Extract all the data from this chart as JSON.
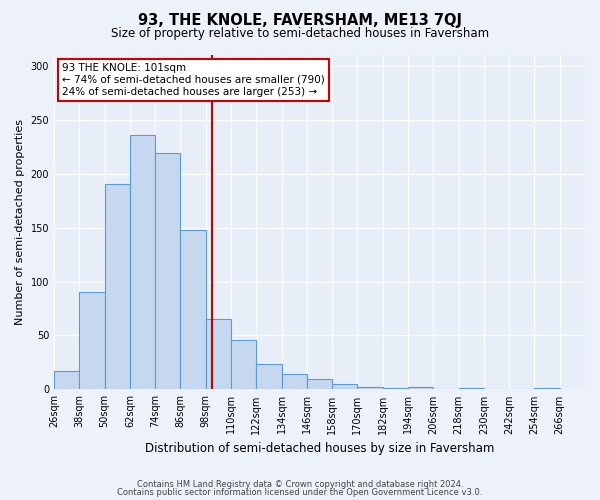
{
  "title": "93, THE KNOLE, FAVERSHAM, ME13 7QJ",
  "subtitle": "Size of property relative to semi-detached houses in Faversham",
  "xlabel": "Distribution of semi-detached houses by size in Faversham",
  "ylabel": "Number of semi-detached properties",
  "bar_color": "#c5d8f0",
  "bar_edge_color": "#5b9bd5",
  "background_color": "#e8eef8",
  "grid_color": "#ffffff",
  "marker_value": 101,
  "marker_color": "#cc0000",
  "annotation_text_line1": "93 THE KNOLE: 101sqm",
  "annotation_text_line2": "← 74% of semi-detached houses are smaller (790)",
  "annotation_text_line3": "24% of semi-detached houses are larger (253) →",
  "annotation_box_color": "#cc0000",
  "categories": [
    "26sqm",
    "38sqm",
    "50sqm",
    "62sqm",
    "74sqm",
    "86sqm",
    "98sqm",
    "110sqm",
    "122sqm",
    "134sqm",
    "146sqm",
    "158sqm",
    "170sqm",
    "182sqm",
    "194sqm",
    "206sqm",
    "218sqm",
    "230sqm",
    "242sqm",
    "254sqm",
    "266sqm"
  ],
  "bin_left_edges": [
    26,
    38,
    50,
    62,
    74,
    86,
    98,
    110,
    122,
    134,
    146,
    158,
    170,
    182,
    194,
    206,
    218,
    230,
    242,
    254
  ],
  "values": [
    17,
    90,
    190,
    236,
    219,
    148,
    65,
    46,
    24,
    14,
    10,
    5,
    2,
    1,
    2,
    0,
    1,
    0,
    0,
    1
  ],
  "bin_width": 12,
  "xlim_left": 26,
  "xlim_right": 278,
  "ylim": [
    0,
    310
  ],
  "yticks": [
    0,
    50,
    100,
    150,
    200,
    250,
    300
  ],
  "xtick_positions": [
    26,
    38,
    50,
    62,
    74,
    86,
    98,
    110,
    122,
    134,
    146,
    158,
    170,
    182,
    194,
    206,
    218,
    230,
    242,
    254,
    266
  ],
  "footer_line1": "Contains HM Land Registry data © Crown copyright and database right 2024.",
  "footer_line2": "Contains public sector information licensed under the Open Government Licence v3.0."
}
